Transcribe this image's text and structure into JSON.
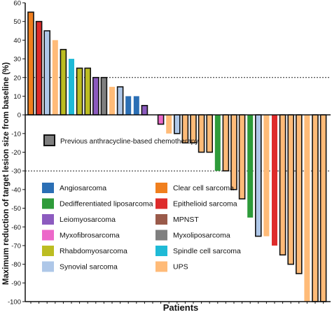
{
  "chart_data": {
    "type": "bar",
    "xlabel": "Patients",
    "ylabel": "Maximum reduction of target lesion size from baseline (%)",
    "ylim": [
      -100,
      60
    ],
    "yticks": [
      60,
      50,
      40,
      30,
      20,
      10,
      0,
      -10,
      -20,
      -30,
      -40,
      -50,
      -60,
      -70,
      -80,
      -90,
      -100
    ],
    "reference_lines": [
      20,
      -30
    ],
    "grid": false,
    "legend_placement": "bottom-left",
    "anthracycline_legend_label": "Previous anthracycline-based chemotherapy",
    "histologies": [
      {
        "key": "angio",
        "label": "Angiosarcoma",
        "color": "#2b6fb5"
      },
      {
        "key": "clearcell",
        "label": "Clear cell sarcoma",
        "color": "#f07f1e"
      },
      {
        "key": "dedif",
        "label": "Dedifferentiated liposarcoma",
        "color": "#2e9b3a"
      },
      {
        "key": "epith",
        "label": "Epithelioid sarcoma",
        "color": "#de2b2b"
      },
      {
        "key": "leio",
        "label": "Leiomyosarcoma",
        "color": "#8c5bbf"
      },
      {
        "key": "mpnst",
        "label": "MPNST",
        "color": "#9a5a4a"
      },
      {
        "key": "myxofib",
        "label": "Myxofibrosarcoma",
        "color": "#ec68c9"
      },
      {
        "key": "myxolipo",
        "label": "Myxoliposarcoma",
        "color": "#7f7f7f"
      },
      {
        "key": "rhabdo",
        "label": "Rhabdomyosarcoma",
        "color": "#bcbd22"
      },
      {
        "key": "spindle",
        "label": "Spindle cell sarcoma",
        "color": "#1fbad6"
      },
      {
        "key": "synovial",
        "label": "Synovial sarcoma",
        "color": "#aec7e8"
      },
      {
        "key": "ups",
        "label": "UPS",
        "color": "#ffbb78"
      }
    ],
    "bars": [
      {
        "value": 55,
        "histology": "clearcell",
        "prior_anthracycline": true
      },
      {
        "value": 50,
        "histology": "epith",
        "prior_anthracycline": true
      },
      {
        "value": 45,
        "histology": "synovial",
        "prior_anthracycline": true
      },
      {
        "value": 40,
        "histology": "ups",
        "prior_anthracycline": false
      },
      {
        "value": 35,
        "histology": "rhabdo",
        "prior_anthracycline": true
      },
      {
        "value": 30,
        "histology": "spindle",
        "prior_anthracycline": false
      },
      {
        "value": 25,
        "histology": "rhabdo",
        "prior_anthracycline": true
      },
      {
        "value": 25,
        "histology": "rhabdo",
        "prior_anthracycline": true
      },
      {
        "value": 20,
        "histology": "leio",
        "prior_anthracycline": true
      },
      {
        "value": 20,
        "histology": "myxolipo",
        "prior_anthracycline": true
      },
      {
        "value": 15,
        "histology": "ups",
        "prior_anthracycline": false
      },
      {
        "value": 15,
        "histology": "synovial",
        "prior_anthracycline": true
      },
      {
        "value": 10,
        "histology": "angio",
        "prior_anthracycline": false
      },
      {
        "value": 10,
        "histology": "angio",
        "prior_anthracycline": false
      },
      {
        "value": 5,
        "histology": "leio",
        "prior_anthracycline": true
      },
      {
        "value": 0,
        "histology": "angio",
        "prior_anthracycline": false
      },
      {
        "value": -5,
        "histology": "myxofib",
        "prior_anthracycline": true
      },
      {
        "value": -10,
        "histology": "ups",
        "prior_anthracycline": false
      },
      {
        "value": -10,
        "histology": "synovial",
        "prior_anthracycline": true
      },
      {
        "value": -15,
        "histology": "ups",
        "prior_anthracycline": true
      },
      {
        "value": -15,
        "histology": "ups",
        "prior_anthracycline": true
      },
      {
        "value": -20,
        "histology": "ups",
        "prior_anthracycline": true
      },
      {
        "value": -20,
        "histology": "ups",
        "prior_anthracycline": true
      },
      {
        "value": -30,
        "histology": "dedif",
        "prior_anthracycline": false
      },
      {
        "value": -30,
        "histology": "ups",
        "prior_anthracycline": true
      },
      {
        "value": -40,
        "histology": "ups",
        "prior_anthracycline": true
      },
      {
        "value": -45,
        "histology": "ups",
        "prior_anthracycline": true
      },
      {
        "value": -55,
        "histology": "dedif",
        "prior_anthracycline": false
      },
      {
        "value": -65,
        "histology": "synovial",
        "prior_anthracycline": true
      },
      {
        "value": -65,
        "histology": "ups",
        "prior_anthracycline": false
      },
      {
        "value": -70,
        "histology": "epith",
        "prior_anthracycline": false
      },
      {
        "value": -75,
        "histology": "ups",
        "prior_anthracycline": true
      },
      {
        "value": -80,
        "histology": "ups",
        "prior_anthracycline": true
      },
      {
        "value": -85,
        "histology": "ups",
        "prior_anthracycline": true
      },
      {
        "value": -100,
        "histology": "ups",
        "prior_anthracycline": false
      },
      {
        "value": -100,
        "histology": "ups",
        "prior_anthracycline": true
      },
      {
        "value": -100,
        "histology": "ups",
        "prior_anthracycline": true
      }
    ]
  }
}
